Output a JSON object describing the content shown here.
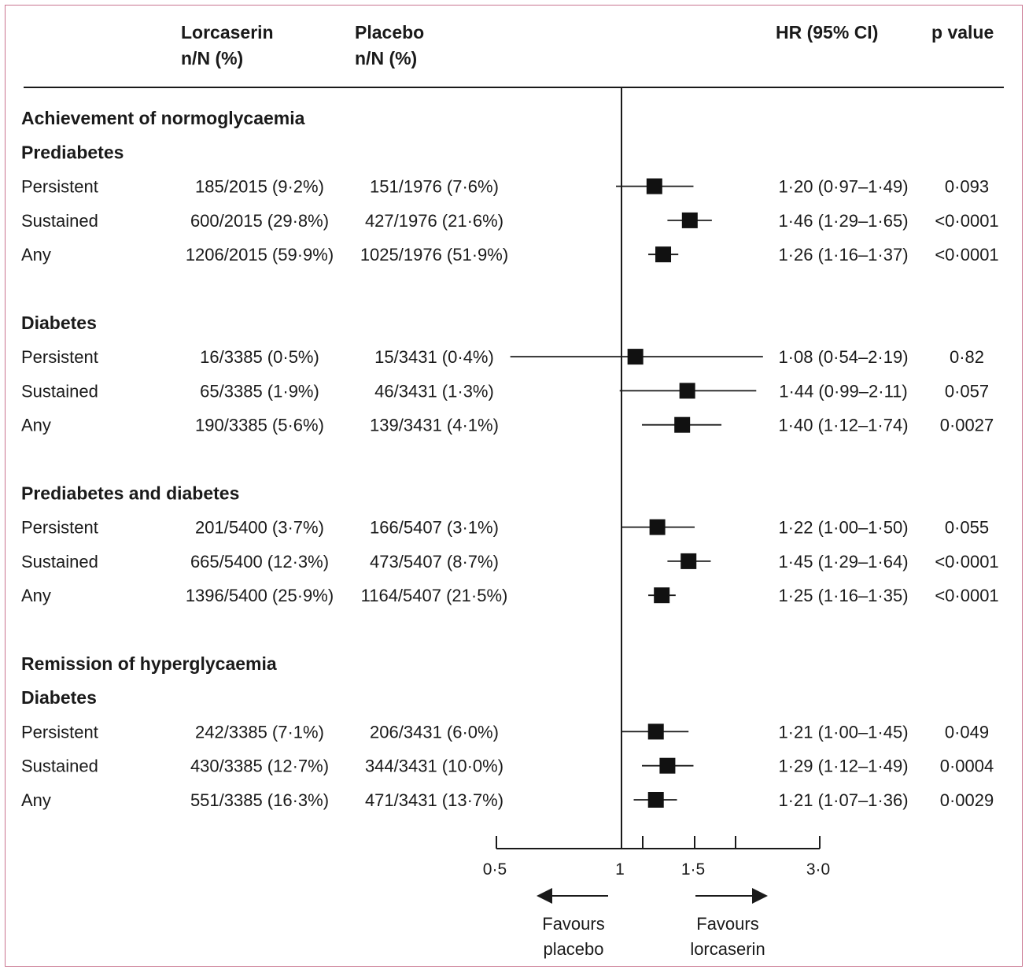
{
  "header": {
    "lorcaserin": "Lorcaserin",
    "lorcaserin_sub": "n/N (%)",
    "placebo": "Placebo",
    "placebo_sub": "n/N (%)",
    "hr": "HR (95% CI)",
    "pvalue": "p value"
  },
  "chart_data": {
    "type": "forest",
    "x_scale": "log",
    "reference_line": 1,
    "axis_ticks": [
      "0·5",
      "1",
      "1·5",
      "3·0"
    ],
    "groups": [
      {
        "heading": "Achievement of normoglycaemia",
        "subgroups": [
          {
            "label": "Prediabetes",
            "rows": [
              {
                "label": "Persistent",
                "lorcaserin": "185/2015 (9·2%)",
                "placebo": "151/1976 (7·6%)",
                "hr_text": "1·20 (0·97–1·49)",
                "p": "0·093",
                "hr": 1.2,
                "lo": 0.97,
                "hi": 1.49
              },
              {
                "label": "Sustained",
                "lorcaserin": "600/2015 (29·8%)",
                "placebo": "427/1976 (21·6%)",
                "hr_text": "1·46 (1·29–1·65)",
                "p": "<0·0001",
                "hr": 1.46,
                "lo": 1.29,
                "hi": 1.65
              },
              {
                "label": "Any",
                "lorcaserin": "1206/2015 (59·9%)",
                "placebo": "1025/1976 (51·9%)",
                "hr_text": "1·26 (1·16–1·37)",
                "p": "<0·0001",
                "hr": 1.26,
                "lo": 1.16,
                "hi": 1.37
              }
            ]
          },
          {
            "label": "Diabetes",
            "rows": [
              {
                "label": "Persistent",
                "lorcaserin": "16/3385 (0·5%)",
                "placebo": "15/3431 (0·4%)",
                "hr_text": "1·08 (0·54–2·19)",
                "p": "0·82",
                "hr": 1.08,
                "lo": 0.54,
                "hi": 2.19
              },
              {
                "label": "Sustained",
                "lorcaserin": "65/3385 (1·9%)",
                "placebo": "46/3431 (1·3%)",
                "hr_text": "1·44 (0·99–2·11)",
                "p": "0·057",
                "hr": 1.44,
                "lo": 0.99,
                "hi": 2.11
              },
              {
                "label": "Any",
                "lorcaserin": "190/3385 (5·6%)",
                "placebo": "139/3431 (4·1%)",
                "hr_text": "1·40 (1·12–1·74)",
                "p": "0·0027",
                "hr": 1.4,
                "lo": 1.12,
                "hi": 1.74
              }
            ]
          },
          {
            "label": "Prediabetes and diabetes",
            "rows": [
              {
                "label": "Persistent",
                "lorcaserin": "201/5400 (3·7%)",
                "placebo": "166/5407 (3·1%)",
                "hr_text": "1·22 (1·00–1·50)",
                "p": "0·055",
                "hr": 1.22,
                "lo": 1.0,
                "hi": 1.5
              },
              {
                "label": "Sustained",
                "lorcaserin": "665/5400 (12·3%)",
                "placebo": "473/5407 (8·7%)",
                "hr_text": "1·45 (1·29–1·64)",
                "p": "<0·0001",
                "hr": 1.45,
                "lo": 1.29,
                "hi": 1.64
              },
              {
                "label": "Any",
                "lorcaserin": "1396/5400 (25·9%)",
                "placebo": "1164/5407 (21·5%)",
                "hr_text": "1·25 (1·16–1·35)",
                "p": "<0·0001",
                "hr": 1.25,
                "lo": 1.16,
                "hi": 1.35
              }
            ]
          }
        ]
      },
      {
        "heading": "Remission of hyperglycaemia",
        "subgroups": [
          {
            "label": "Diabetes",
            "rows": [
              {
                "label": "Persistent",
                "lorcaserin": "242/3385 (7·1%)",
                "placebo": "206/3431 (6·0%)",
                "hr_text": "1·21 (1·00–1·45)",
                "p": "0·049",
                "hr": 1.21,
                "lo": 1.0,
                "hi": 1.45
              },
              {
                "label": "Sustained",
                "lorcaserin": "430/3385 (12·7%)",
                "placebo": "344/3431 (10·0%)",
                "hr_text": "1·29 (1·12–1·49)",
                "p": "0·0004",
                "hr": 1.29,
                "lo": 1.12,
                "hi": 1.49
              },
              {
                "label": "Any",
                "lorcaserin": "551/3385 (16·3%)",
                "placebo": "471/3431 (13·7%)",
                "hr_text": "1·21 (1·07–1·36)",
                "p": "0·0029",
                "hr": 1.21,
                "lo": 1.07,
                "hi": 1.36
              }
            ]
          }
        ]
      }
    ],
    "favours_left": [
      "Favours",
      "placebo"
    ],
    "favours_right": [
      "Favours",
      "lorcaserin"
    ]
  }
}
